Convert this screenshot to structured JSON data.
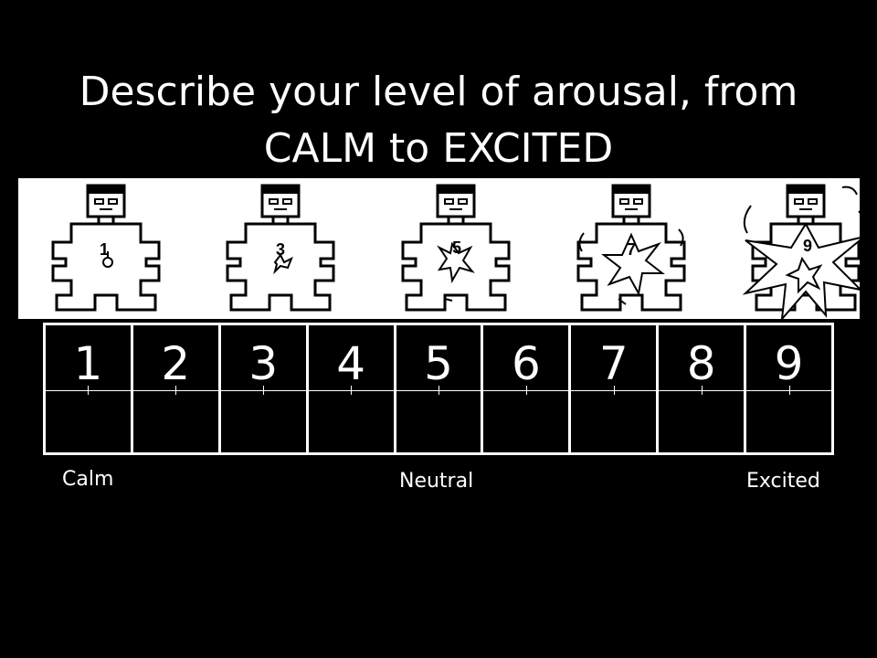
{
  "title": {
    "line1": "Describe your level of arousal, from",
    "line2": "CALM to EXCITED"
  },
  "figures": {
    "labels": [
      "1",
      "3",
      "5",
      "7",
      "9"
    ]
  },
  "scale": {
    "values": [
      "1",
      "2",
      "3",
      "4",
      "5",
      "6",
      "7",
      "8",
      "9"
    ]
  },
  "anchors": {
    "calm": "Calm",
    "neutral": "Neutral",
    "excited": "Excited"
  },
  "colors": {
    "background": "#000000",
    "foreground": "#ffffff"
  }
}
